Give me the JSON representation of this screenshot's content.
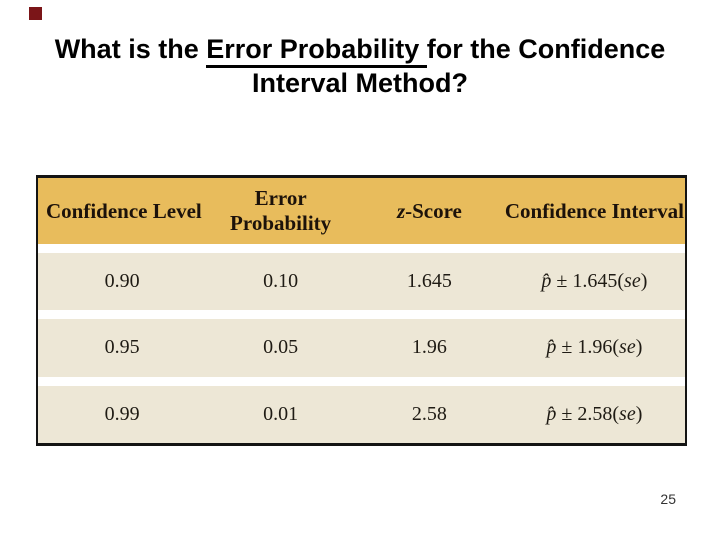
{
  "slide": {
    "title": {
      "part1": "What is the ",
      "underlined": "Error Probability ",
      "part2": "for the Confidence",
      "line2": "Interval Method?"
    },
    "page_number": "25"
  },
  "table": {
    "headers": {
      "confidence_level": "Confidence Level",
      "error_probability": "Error Probability",
      "z_italic": "z",
      "z_rest": "-Score",
      "confidence_interval": "Confidence Interval"
    },
    "rows": [
      {
        "confidence_level": "0.90",
        "error_probability": "0.10",
        "z_score": "1.645",
        "phat": "p̂",
        "plus_minus": "±",
        "multiplier": "1.645(",
        "se": "se",
        "close_paren": ")"
      },
      {
        "confidence_level": "0.95",
        "error_probability": "0.05",
        "z_score": "1.96",
        "phat": "p̂",
        "plus_minus": "±",
        "multiplier": "1.96(",
        "se": "se",
        "close_paren": ")"
      },
      {
        "confidence_level": "0.99",
        "error_probability": "0.01",
        "z_score": "2.58",
        "phat": "p̂",
        "plus_minus": "±",
        "multiplier": "2.58(",
        "se": "se",
        "close_paren": ")"
      }
    ]
  },
  "colors": {
    "header_bg": "#e8bc5c",
    "row_bg": "#ede7d6",
    "table_border": "#141414",
    "accent_square": "#7b1518"
  }
}
